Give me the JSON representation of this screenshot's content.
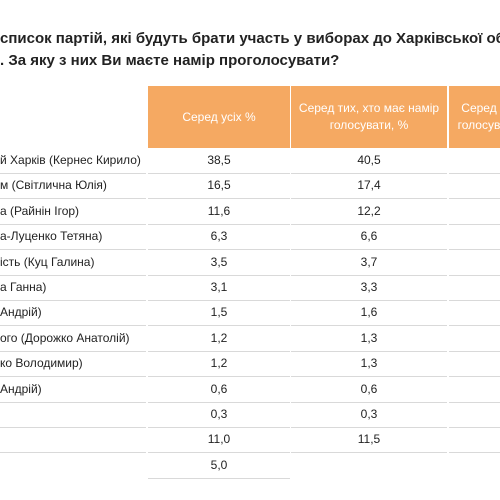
{
  "title": {
    "line1": "список партій, які будуть брати участь у виборах до Харківської обл",
    "line2": ". За яку з них Ви маєте намір проголосувати?"
  },
  "table": {
    "headers": [
      "Серед усіх %",
      "Серед тих, хто має намір голосувати, %",
      "Серед\nголосув"
    ],
    "rows": [
      {
        "label": "й Харків (Кернес Кирило)",
        "values": [
          "38,5",
          "40,5"
        ]
      },
      {
        "label": "м (Світлична Юлія)",
        "values": [
          "16,5",
          "17,4"
        ]
      },
      {
        "label": "а (Райнін Ігор)",
        "values": [
          "11,6",
          "12,2"
        ]
      },
      {
        "label": "а-Луценко Тетяна)",
        "values": [
          "6,3",
          "6,6"
        ]
      },
      {
        "label": "ість (Куц Галина)",
        "values": [
          "3,5",
          "3,7"
        ]
      },
      {
        "label": "а Ганна)",
        "values": [
          "3,1",
          "3,3"
        ]
      },
      {
        "label": "Андрій)",
        "values": [
          "1,5",
          "1,6"
        ]
      },
      {
        "label": "ого (Дорожко Анатолій)",
        "values": [
          "1,2",
          "1,3"
        ]
      },
      {
        "label": "ко Володимир)",
        "values": [
          "1,2",
          "1,3"
        ]
      },
      {
        "label": "Андрій)",
        "values": [
          "0,6",
          "0,6"
        ]
      },
      {
        "values": [
          "0,3",
          "0,3"
        ]
      },
      {
        "values": [
          "11,0",
          "11,5"
        ]
      },
      {
        "values": [
          "5,0"
        ]
      }
    ]
  }
}
